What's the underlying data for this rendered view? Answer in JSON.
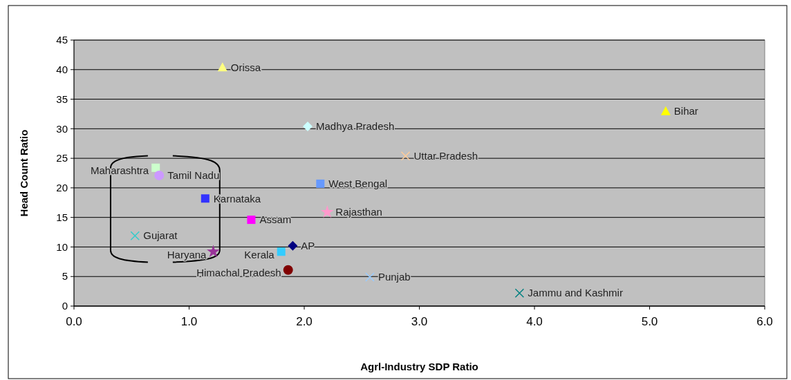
{
  "chart_data": {
    "type": "scatter",
    "xlabel": "Agrl-Industry SDP Ratio",
    "ylabel": "Head Count Ratio",
    "xlim": [
      0,
      6
    ],
    "xticks": [
      {
        "value": 0,
        "label": "0.0"
      },
      {
        "value": 1,
        "label": "1.0"
      },
      {
        "value": 2,
        "label": "2.0"
      },
      {
        "value": 3,
        "label": "3.0"
      },
      {
        "value": 4,
        "label": "4.0"
      },
      {
        "value": 5,
        "label": "5.0"
      },
      {
        "value": 6,
        "label": "6.0"
      }
    ],
    "ylim": [
      0,
      45
    ],
    "yticks": [
      0,
      5,
      10,
      15,
      20,
      25,
      30,
      35,
      40,
      45
    ],
    "grid": "y",
    "series": [
      {
        "name": "Orissa",
        "color": "#ffff80",
        "marker": "triangle",
        "x": [
          1.29
        ],
        "values": [
          40.4
        ]
      },
      {
        "name": "Bihar",
        "color": "#ffff00",
        "marker": "triangle",
        "x": [
          5.14
        ],
        "values": [
          33.0
        ]
      },
      {
        "name": "Madhya Pradesh",
        "color": "#ccffff",
        "marker": "diamond",
        "x": [
          2.03
        ],
        "values": [
          30.4
        ]
      },
      {
        "name": "Uttar Pradesh",
        "color": "#ffcc99",
        "marker": "cross",
        "x": [
          2.88
        ],
        "values": [
          25.4
        ]
      },
      {
        "name": "Maharashtra",
        "color": "#ccffcc",
        "marker": "square",
        "x": [
          0.71
        ],
        "values": [
          23.4
        ]
      },
      {
        "name": "Tamil Nadu",
        "color": "#cc99ff",
        "marker": "circle",
        "x": [
          0.74
        ],
        "values": [
          22.1
        ]
      },
      {
        "name": "West Bengal",
        "color": "#6699ff",
        "marker": "square",
        "x": [
          2.14
        ],
        "values": [
          20.7
        ]
      },
      {
        "name": "Karnataka",
        "color": "#3333ff",
        "marker": "square",
        "x": [
          1.14
        ],
        "values": [
          18.2
        ]
      },
      {
        "name": "Rajasthan",
        "color": "#ff99cc",
        "marker": "star",
        "x": [
          2.2
        ],
        "values": [
          15.9
        ]
      },
      {
        "name": "Assam",
        "color": "#ff00ff",
        "marker": "square",
        "x": [
          1.54
        ],
        "values": [
          14.6
        ]
      },
      {
        "name": "Gujarat",
        "color": "#33cccc",
        "marker": "cross",
        "x": [
          0.53
        ],
        "values": [
          11.9
        ]
      },
      {
        "name": "AP",
        "color": "#000080",
        "marker": "diamond",
        "x": [
          1.9
        ],
        "values": [
          10.2
        ]
      },
      {
        "name": "Kerala",
        "color": "#33ccff",
        "marker": "square",
        "x": [
          1.8
        ],
        "values": [
          9.2
        ]
      },
      {
        "name": "Haryana",
        "color": "#993399",
        "marker": "star",
        "x": [
          1.21
        ],
        "values": [
          9.2
        ]
      },
      {
        "name": "Himachal Pradesh",
        "color": "#800000",
        "marker": "circle",
        "x": [
          1.86
        ],
        "values": [
          6.1
        ]
      },
      {
        "name": "Punjab",
        "color": "#99ccff",
        "marker": "cross",
        "x": [
          2.57
        ],
        "values": [
          4.9
        ]
      },
      {
        "name": "Jammu and Kashmir",
        "color": "#008080",
        "marker": "cross",
        "x": [
          3.87
        ],
        "values": [
          2.2
        ]
      }
    ]
  }
}
